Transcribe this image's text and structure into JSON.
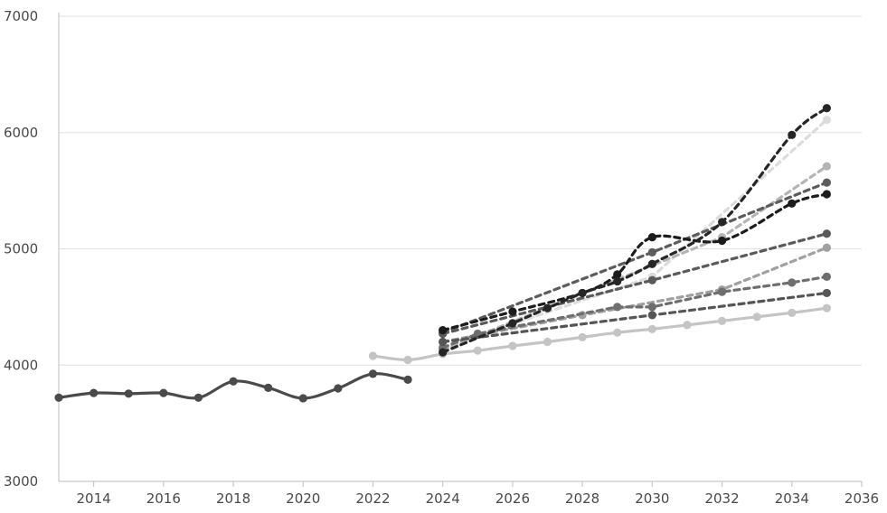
{
  "chart_data": {
    "type": "line",
    "title": "",
    "xlabel": "",
    "ylabel": "",
    "xlim": [
      2013,
      2036
    ],
    "ylim": [
      3000,
      7000
    ],
    "x_ticks": [
      "2014",
      "2016",
      "2018",
      "2020",
      "2022",
      "2024",
      "2026",
      "2028",
      "2030",
      "2032",
      "2034",
      "2036"
    ],
    "y_ticks": [
      "3000",
      "4000",
      "5000",
      "6000",
      "7000"
    ],
    "grid": true,
    "legend": "none",
    "series": [
      {
        "style": "solid",
        "color": "#4a4a4a",
        "curve": "smooth",
        "x": [
          2013,
          2014,
          2015,
          2016,
          2017,
          2018,
          2019,
          2020,
          2021,
          2022,
          2023
        ],
        "y": [
          3720,
          3760,
          3755,
          3760,
          3720,
          3860,
          3805,
          3715,
          3800,
          3925,
          3875
        ]
      },
      {
        "style": "solid",
        "color": "#c4c4c4",
        "curve": "smooth",
        "x": [
          2022,
          2023,
          2024,
          2025,
          2026,
          2027,
          2028,
          2029,
          2030,
          2031,
          2032,
          2033,
          2034,
          2035
        ],
        "y": [
          4080,
          4045,
          4095,
          4125,
          4165,
          4200,
          4240,
          4280,
          4310,
          4345,
          4380,
          4415,
          4450,
          4490
        ]
      },
      {
        "style": "dashed",
        "color": "#dcdcdc",
        "curve": "straight",
        "x": [
          2024,
          2030,
          2035
        ],
        "y": [
          4150,
          4760,
          6110
        ]
      },
      {
        "style": "dashed",
        "color": "#b4b4b4",
        "curve": "straight",
        "x": [
          2024,
          2032,
          2035
        ],
        "y": [
          4130,
          5100,
          5710
        ]
      },
      {
        "style": "dashed",
        "color": "#a0a0a0",
        "curve": "straight",
        "x": [
          2024,
          2028,
          2032,
          2035
        ],
        "y": [
          4200,
          4430,
          4650,
          5010
        ]
      },
      {
        "style": "dashed",
        "color": "#5c5c5c",
        "curve": "straight",
        "x": [
          2024,
          2030,
          2035
        ],
        "y": [
          4280,
          4970,
          5570
        ]
      },
      {
        "style": "dashed",
        "color": "#5a5a5a",
        "curve": "straight",
        "x": [
          2024,
          2030,
          2035
        ],
        "y": [
          4270,
          4730,
          5130
        ]
      },
      {
        "style": "dashed",
        "color": "#6e6e6e",
        "curve": "straight",
        "x": [
          2024,
          2025,
          2029,
          2030,
          2032,
          2034,
          2035
        ],
        "y": [
          4150,
          4270,
          4500,
          4500,
          4630,
          4710,
          4760
        ]
      },
      {
        "style": "dashed",
        "color": "#555555",
        "curve": "straight",
        "x": [
          2024,
          2030,
          2035
        ],
        "y": [
          4200,
          4430,
          4620
        ]
      },
      {
        "style": "dashed",
        "color": "#1c1c1c",
        "curve": "smooth",
        "x": [
          2024,
          2026,
          2028,
          2029,
          2030,
          2032,
          2034,
          2035
        ],
        "y": [
          4300,
          4460,
          4620,
          4780,
          5100,
          5070,
          5390,
          5470
        ]
      },
      {
        "style": "dashed",
        "color": "#262626",
        "curve": "smooth",
        "x": [
          2024,
          2026,
          2027,
          2028,
          2029,
          2030,
          2032,
          2034,
          2035
        ],
        "y": [
          4110,
          4360,
          4490,
          4620,
          4720,
          4870,
          5230,
          5980,
          6210
        ]
      }
    ]
  }
}
